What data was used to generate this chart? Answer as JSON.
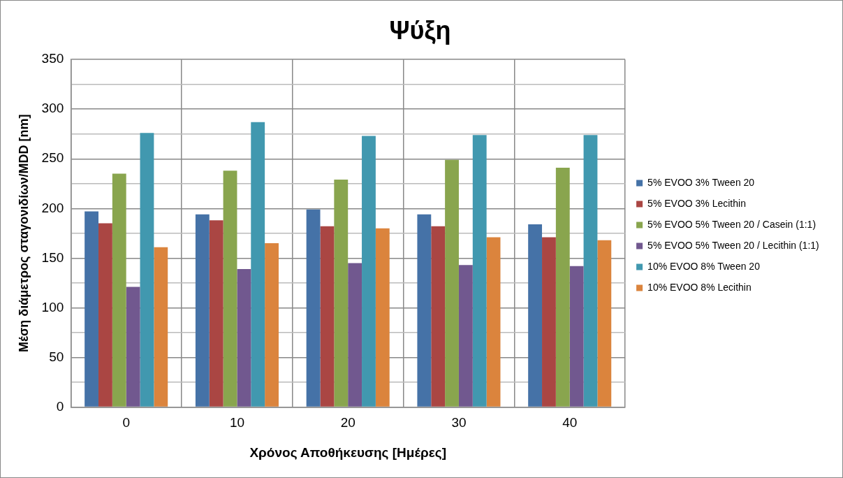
{
  "chart_data": {
    "type": "bar",
    "title": "Ψύξη",
    "xlabel": "Χρόνος Αποθήκευσης [Ημέρες]",
    "ylabel": "Μέση διάμετρος σταγονιδίων/MDD [nm]",
    "categories": [
      "0",
      "10",
      "20",
      "30",
      "40"
    ],
    "series": [
      {
        "name": "5% EVOO 3% Tween 20",
        "color": "#4572a7",
        "values": [
          197,
          194,
          199,
          194,
          184
        ]
      },
      {
        "name": "5% EVOO 3% Lecithin",
        "color": "#aa4643",
        "values": [
          185,
          188,
          182,
          182,
          171
        ]
      },
      {
        "name": "5% EVOO 5% Tween 20 / Casein (1:1)",
        "color": "#89a54e",
        "values": [
          235,
          238,
          229,
          249,
          241
        ]
      },
      {
        "name": "5% EVOO 5% Tween 20 / Lecithin (1:1)",
        "color": "#71588f",
        "values": [
          121,
          139,
          145,
          143,
          142
        ]
      },
      {
        "name": "10% EVOO 8% Tween 20",
        "color": "#4198af",
        "values": [
          276,
          287,
          273,
          274,
          274
        ]
      },
      {
        "name": "10% EVOO 8% Lecithin",
        "color": "#db843d",
        "values": [
          161,
          165,
          180,
          171,
          168
        ]
      }
    ],
    "ylim": [
      0,
      350
    ],
    "yticks": [
      0,
      {
        "value": 25,
        "label": null
      },
      50,
      {
        "value": 75,
        "label": null
      },
      100,
      {
        "value": 125,
        "label": null
      },
      150,
      {
        "value": 175,
        "label": null
      },
      200,
      {
        "value": 225,
        "label": null
      },
      250,
      {
        "value": 275,
        "label": null
      },
      300,
      {
        "value": 325,
        "label": null
      },
      350
    ],
    "grid": true,
    "legend": "right"
  }
}
